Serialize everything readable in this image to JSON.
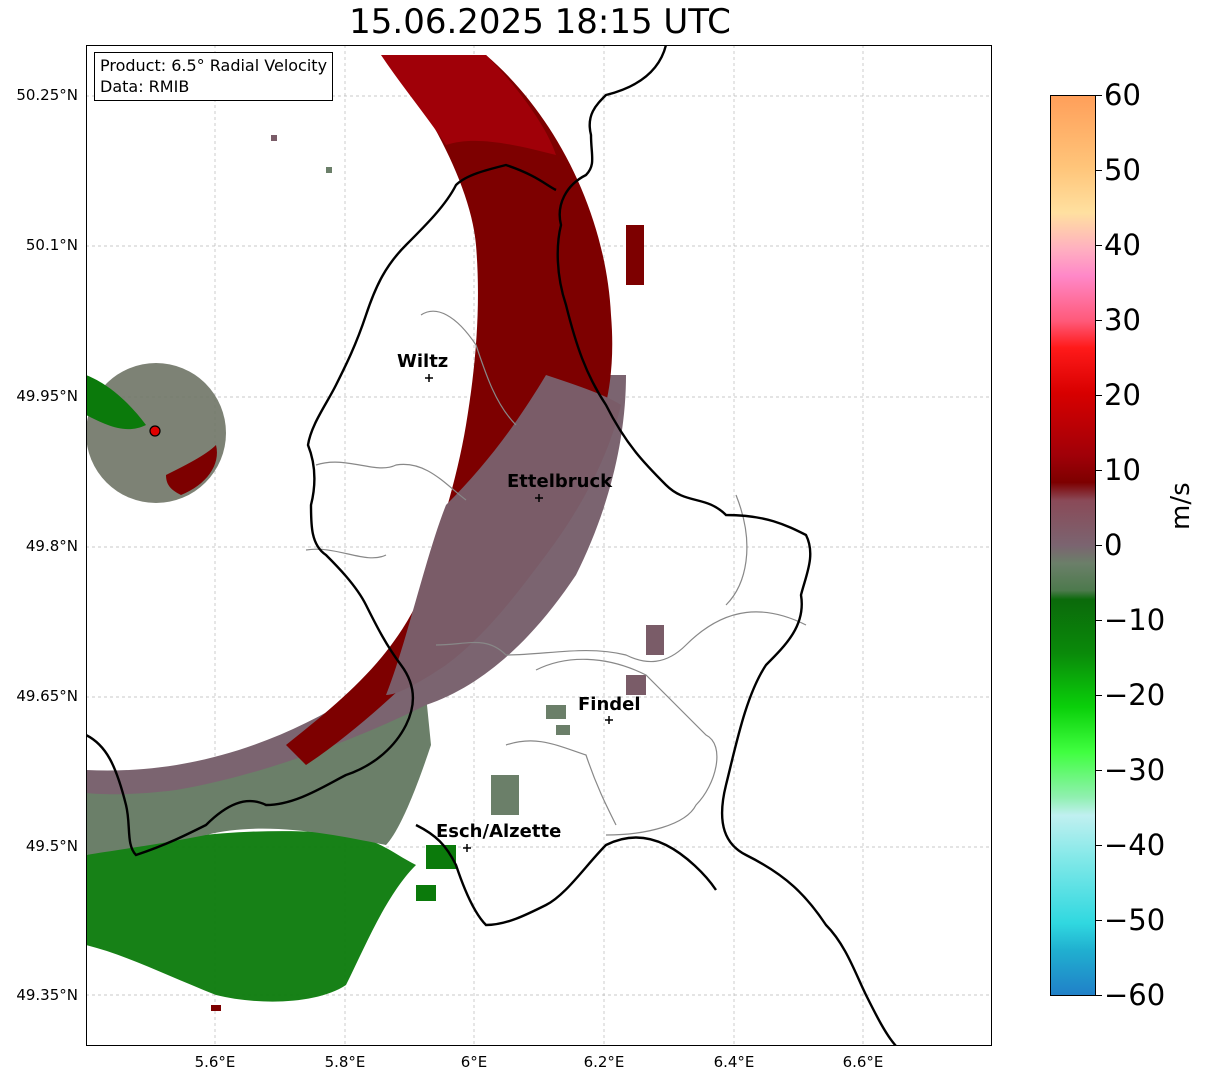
{
  "title": "15.06.2025 18:15 UTC",
  "info": {
    "product": "Product: 6.5° Radial Velocity",
    "data_source": "Data: RMIB"
  },
  "axes": {
    "y_ticks": [
      "50.25°N",
      "50.1°N",
      "49.95°N",
      "49.8°N",
      "49.65°N",
      "49.5°N",
      "49.35°N"
    ],
    "x_ticks": [
      "5.6°E",
      "5.8°E",
      "6°E",
      "6.2°E",
      "6.4°E",
      "6.6°E"
    ]
  },
  "cities": [
    {
      "name": "Wiltz"
    },
    {
      "name": "Ettelbruck"
    },
    {
      "name": "Findel"
    },
    {
      "name": "Esch/Alzette"
    }
  ],
  "colorbar": {
    "unit": "m/s",
    "min": -60,
    "max": 60,
    "ticks": [
      "60",
      "50",
      "40",
      "30",
      "20",
      "10",
      "0",
      "−10",
      "−20",
      "−30",
      "−40",
      "−50",
      "−60"
    ]
  },
  "colors": {
    "strong_inbound": "#8b0000",
    "weak_outbound": "#7a5a66",
    "near_zero": "#6a8068",
    "outbound_green": "#0a7a0a",
    "radar_site": "#e00000"
  }
}
